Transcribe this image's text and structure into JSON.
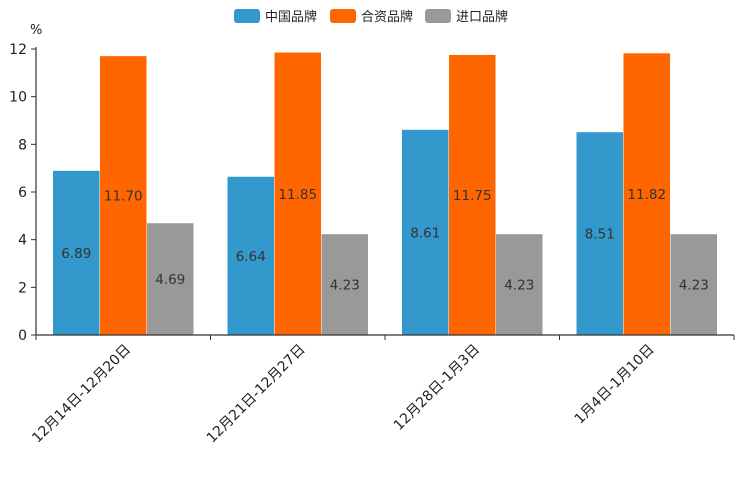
{
  "chart_data": {
    "type": "bar",
    "title": "",
    "ylabel": "%",
    "xlabel": "",
    "ylim": [
      0,
      12
    ],
    "yticks": [
      0,
      2,
      4,
      6,
      8,
      10,
      12
    ],
    "categories": [
      "12月14日-12月20日",
      "12月21日-12月27日",
      "12月28日-1月3日",
      "1月4日-1月10日"
    ],
    "series": [
      {
        "name": "中国品牌",
        "color": "#3399cc",
        "values": [
          6.89,
          6.64,
          8.61,
          8.51
        ],
        "labels": [
          "6.89",
          "6.64",
          "8.61",
          "8.51"
        ]
      },
      {
        "name": "合资品牌",
        "color": "#ff6600",
        "values": [
          11.7,
          11.85,
          11.75,
          11.82
        ],
        "labels": [
          "11.70",
          "11.85",
          "11.75",
          "11.82"
        ]
      },
      {
        "name": "进口品牌",
        "color": "#999999",
        "values": [
          4.69,
          4.23,
          4.23,
          4.23
        ],
        "labels": [
          "4.69",
          "4.23",
          "4.23",
          "4.23"
        ]
      }
    ],
    "legend_position": "top-center",
    "grid": false
  }
}
